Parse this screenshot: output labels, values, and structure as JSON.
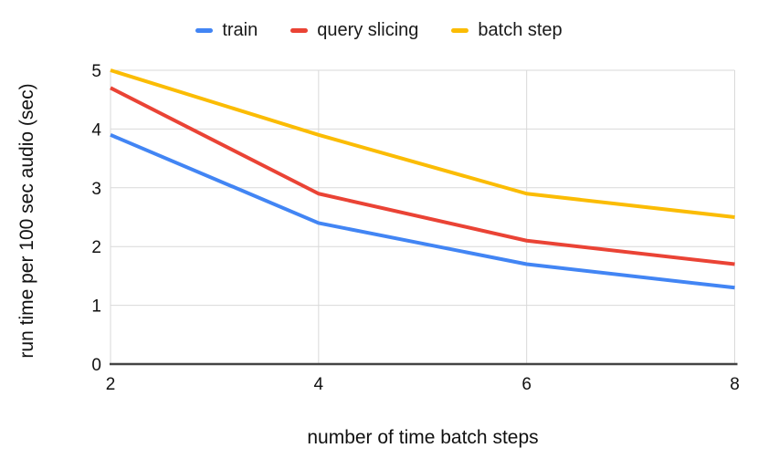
{
  "chart_data": {
    "type": "line",
    "x": [
      2,
      4,
      6,
      8
    ],
    "series": [
      {
        "name": "train",
        "color": "#4285F4",
        "values": [
          3.9,
          2.4,
          1.7,
          1.3
        ]
      },
      {
        "name": "query slicing",
        "color": "#EA4335",
        "values": [
          4.7,
          2.9,
          2.1,
          1.7
        ]
      },
      {
        "name": "batch step",
        "color": "#FBBC04",
        "values": [
          5.0,
          3.9,
          2.9,
          2.5
        ]
      }
    ],
    "title": "",
    "xlabel": "number of time batch steps",
    "ylabel": "run time per 100 sec audio (sec)",
    "xticks": [
      "2",
      "4",
      "6",
      "8"
    ],
    "yticks": [
      "0",
      "1",
      "2",
      "3",
      "4",
      "5"
    ],
    "xlim": [
      2,
      8
    ],
    "ylim": [
      0,
      5
    ],
    "grid": true,
    "legend_position": "top"
  },
  "colors": {
    "background": "#ffffff",
    "gridline": "#d9d9d9",
    "axis_line": "#444444",
    "text": "#111111"
  }
}
